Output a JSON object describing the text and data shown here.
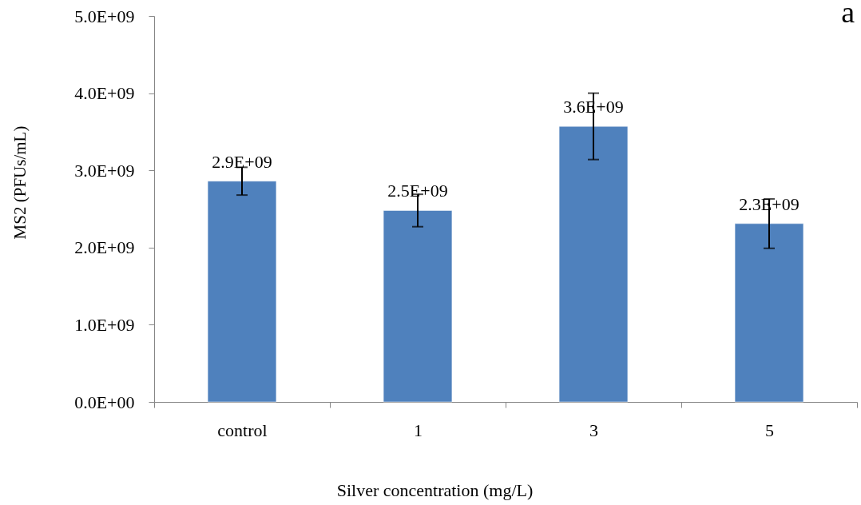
{
  "chart_data": {
    "type": "bar",
    "xlabel": "Silver concentration (mg/L)",
    "ylabel": "MS2 (PFUs/mL)",
    "categories": [
      "control",
      "1",
      "3",
      "5"
    ],
    "values": [
      2860000000,
      2480000000,
      3570000000,
      2310000000
    ],
    "color": "#4f81bd",
    "errors": [
      180000000,
      210000000,
      430000000,
      320000000
    ],
    "value_labels": [
      "2.9E+09",
      "2.5E+09",
      "3.6E+09",
      "2.3E+09"
    ],
    "ylim": [
      0,
      5000000000
    ],
    "yticks": [
      {
        "value": 0,
        "label": "0.0E+00"
      },
      {
        "value": 1000000000,
        "label": "1.0E+09"
      },
      {
        "value": 2000000000,
        "label": "2.0E+09"
      },
      {
        "value": 3000000000,
        "label": "3.0E+09"
      },
      {
        "value": 4000000000,
        "label": "4.0E+09"
      },
      {
        "value": 5000000000,
        "label": "5.0E+09"
      }
    ],
    "annotations": [
      "a"
    ]
  }
}
